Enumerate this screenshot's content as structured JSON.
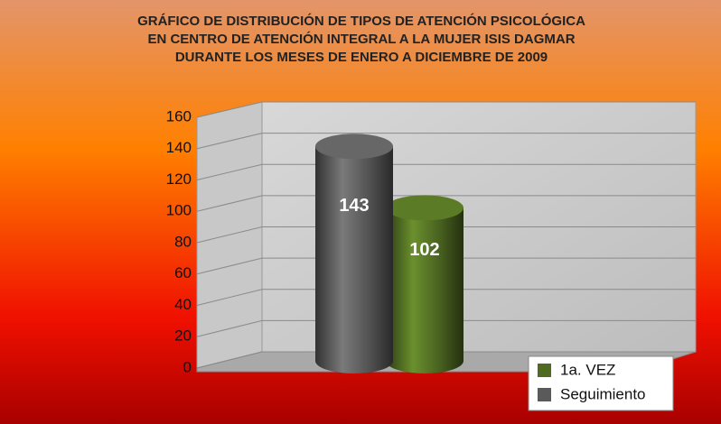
{
  "chart_data": {
    "type": "bar3d",
    "title": "GRÁFICO DE DISTRIBUCIÓN DE TIPOS DE ATENCIÓN PSICOLÓGICA EN CENTRO DE ATENCIÓN INTEGRAL A LA MUJER ISIS DAGMAR DURANTE LOS MESES DE ENERO A DICIEMBRE DE 2009",
    "categories": [
      null
    ],
    "series": [
      {
        "name": "1a. VEZ",
        "color": "#4f6b22",
        "values": [
          102
        ]
      },
      {
        "name": "Seguimiento",
        "color": "#5a5a5a",
        "values": [
          143
        ]
      }
    ],
    "ylim": [
      0,
      160
    ],
    "yticks": [
      0,
      20,
      40,
      60,
      80,
      100,
      120,
      140,
      160
    ],
    "grid": true,
    "legend": "bottom-right"
  }
}
